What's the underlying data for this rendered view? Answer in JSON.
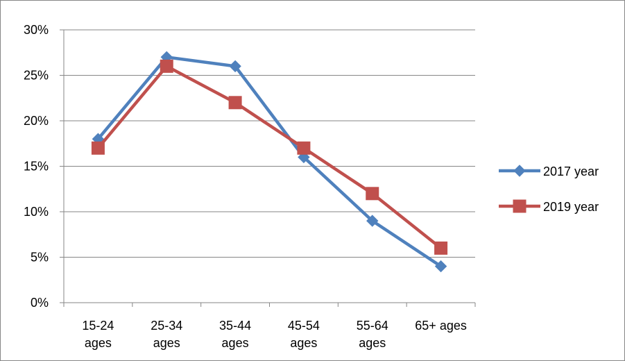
{
  "chart_data": {
    "type": "line",
    "categories": [
      [
        "15-24",
        "ages"
      ],
      [
        "25-34",
        "ages"
      ],
      [
        "35-44",
        "ages"
      ],
      [
        "45-54",
        "ages"
      ],
      [
        "55-64",
        "ages"
      ],
      [
        "65+ ages"
      ]
    ],
    "y_tick_labels": [
      "0%",
      "5%",
      "10%",
      "15%",
      "20%",
      "25%",
      "30%"
    ],
    "y_ticks": [
      0,
      5,
      10,
      15,
      20,
      25,
      30
    ],
    "ylim": [
      0,
      30
    ],
    "y_unit": "percent",
    "grid": "horizontal",
    "legend_position": "right",
    "series": [
      {
        "name": "2017 year",
        "values": [
          18,
          27,
          26,
          16,
          9,
          4
        ],
        "color": "#4f81bd",
        "marker": "diamond"
      },
      {
        "name": "2019 year",
        "values": [
          17,
          26,
          22,
          17,
          12,
          6
        ],
        "color": "#c0504d",
        "marker": "square"
      }
    ]
  }
}
